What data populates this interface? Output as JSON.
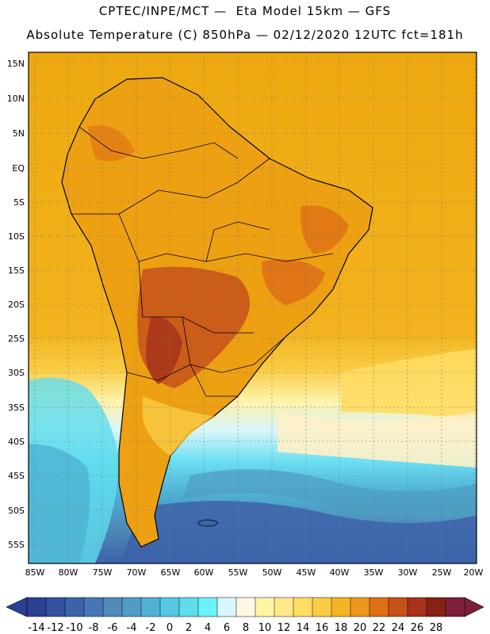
{
  "header": {
    "line1": "CPTEC/INPE/MCT —  Eta Model 15km — GFS",
    "line2": "Absolute Temperature (C) 850hPa — 02/12/2020 12UTC fct=181h"
  },
  "map": {
    "lat_labels": [
      "15N",
      "10N",
      "5N",
      "EQ",
      "5S",
      "10S",
      "15S",
      "20S",
      "25S",
      "30S",
      "35S",
      "40S",
      "45S",
      "50S",
      "55S"
    ],
    "lon_labels": [
      "85W",
      "80W",
      "75W",
      "70W",
      "65W",
      "60W",
      "55W",
      "50W",
      "45W",
      "40W",
      "35W",
      "30W",
      "25W",
      "20W"
    ]
  },
  "colorbar": {
    "labels": [
      "-14",
      "-12",
      "-10",
      "-8",
      "-6",
      "-4",
      "-2",
      "0",
      "2",
      "4",
      "6",
      "8",
      "10",
      "12",
      "14",
      "16",
      "18",
      "20",
      "22",
      "24",
      "26",
      "28"
    ],
    "colors": [
      "#2b3f93",
      "#34519f",
      "#3c63a9",
      "#4777b2",
      "#4f8ab9",
      "#4f9cc5",
      "#4fb2d5",
      "#54c7e4",
      "#5fdcee",
      "#6cf2f8",
      "#d8f6fb",
      "#fff7e4",
      "#fff5a3",
      "#ffe88a",
      "#ffdc62",
      "#f9cc45",
      "#f4b524",
      "#eb971c",
      "#dd6f16",
      "#c6511a",
      "#a6321a",
      "#862212",
      "#7c1f3a"
    ],
    "under_color": "#2b3f93",
    "over_color": "#7c1f3a"
  }
}
